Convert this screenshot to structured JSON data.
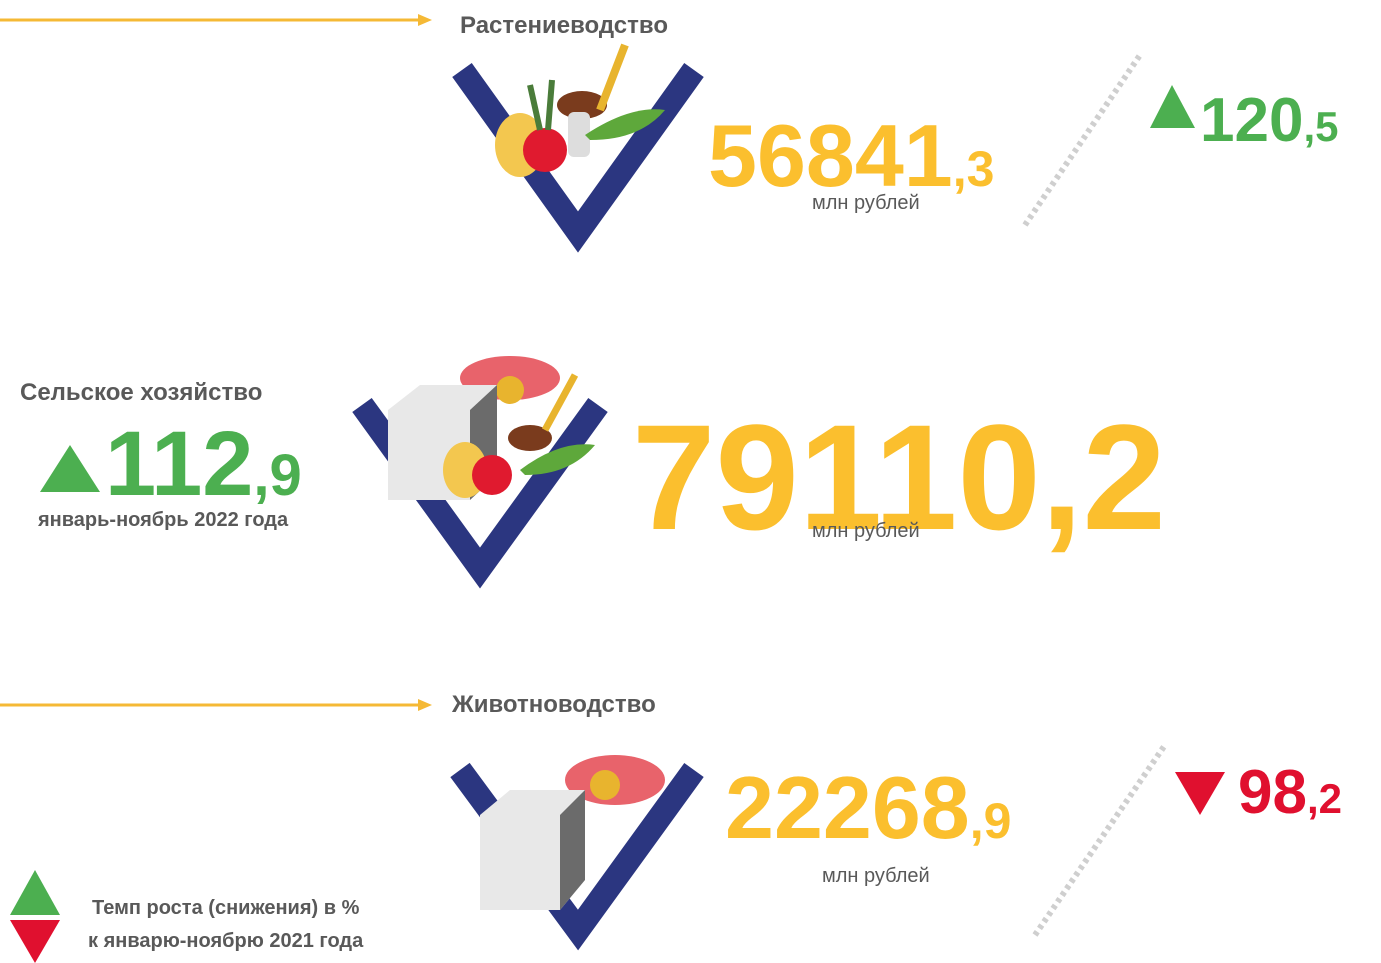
{
  "crop": {
    "title": "Растениеводство",
    "value_int": "56841",
    "value_frac": ",3",
    "unit": "млн рублей",
    "growth_int": "120",
    "growth_frac": ",5"
  },
  "total": {
    "title": "Сельское хозяйство",
    "growth_int": "112",
    "growth_frac": ",9",
    "period": "январь-ноябрь 2022 года",
    "value_int": "79110",
    "value_frac": ",2",
    "unit": "млн рублей"
  },
  "livestock": {
    "title": "Животноводство",
    "value_int": "22268",
    "value_frac": ",9",
    "unit": "млн рублей",
    "growth_int": "98",
    "growth_frac": ",2"
  },
  "legend": {
    "lines": [
      "Темп роста (снижения) в %",
      "к январю-ноябрю 2021 года"
    ]
  }
}
